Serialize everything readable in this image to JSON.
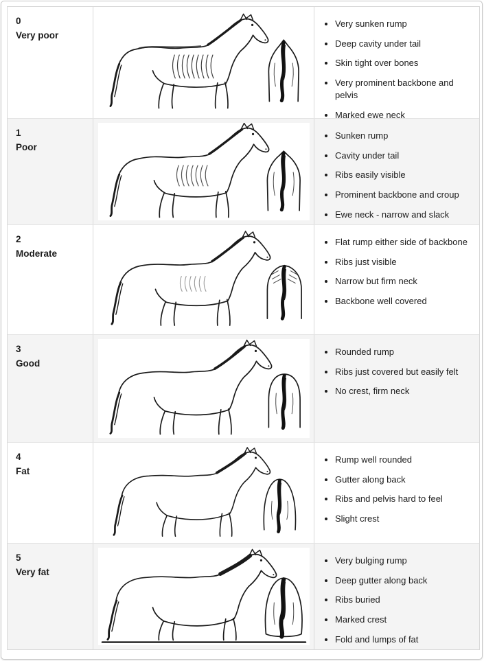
{
  "colors": {
    "row_alt_bg": "#f4f4f4",
    "border": "#d9d9d9",
    "text": "#1c1c1c",
    "frame": "#c6c6c6"
  },
  "table": {
    "rows": [
      {
        "score": "0",
        "label": "Very poor",
        "image_alt": "emaciated-horse-sketch-side-and-rear",
        "points": [
          "Very sunken rump",
          "Deep cavity under tail",
          "Skin tight over bones",
          "Very prominent backbone and pelvis",
          "Marked ewe neck"
        ]
      },
      {
        "score": "1",
        "label": "Poor",
        "image_alt": "thin-horse-sketch-side-and-rear",
        "points": [
          "Sunken rump",
          "Cavity under tail",
          "Ribs easily visible",
          "Prominent backbone and croup",
          "Ewe neck - narrow and slack"
        ]
      },
      {
        "score": "2",
        "label": "Moderate",
        "image_alt": "moderate-horse-sketch-side-and-rear",
        "points": [
          "Flat rump either side of backbone",
          "Ribs just visible",
          "Narrow but firm neck",
          "Backbone well covered"
        ]
      },
      {
        "score": "3",
        "label": "Good",
        "image_alt": "good-condition-horse-sketch-side-and-rear",
        "points": [
          "Rounded rump",
          "Ribs just covered but easily felt",
          "No crest, firm neck"
        ]
      },
      {
        "score": "4",
        "label": "Fat",
        "image_alt": "fat-horse-sketch-side-and-rear",
        "points": [
          "Rump well rounded",
          "Gutter along back",
          "Ribs and pelvis hard to feel",
          "Slight crest"
        ]
      },
      {
        "score": "5",
        "label": "Very fat",
        "image_alt": "very-fat-horse-sketch-side-and-rear",
        "points": [
          "Very bulging rump",
          "Deep gutter along back",
          "Ribs buried",
          "Marked crest",
          "Fold and lumps of fat"
        ]
      }
    ]
  }
}
